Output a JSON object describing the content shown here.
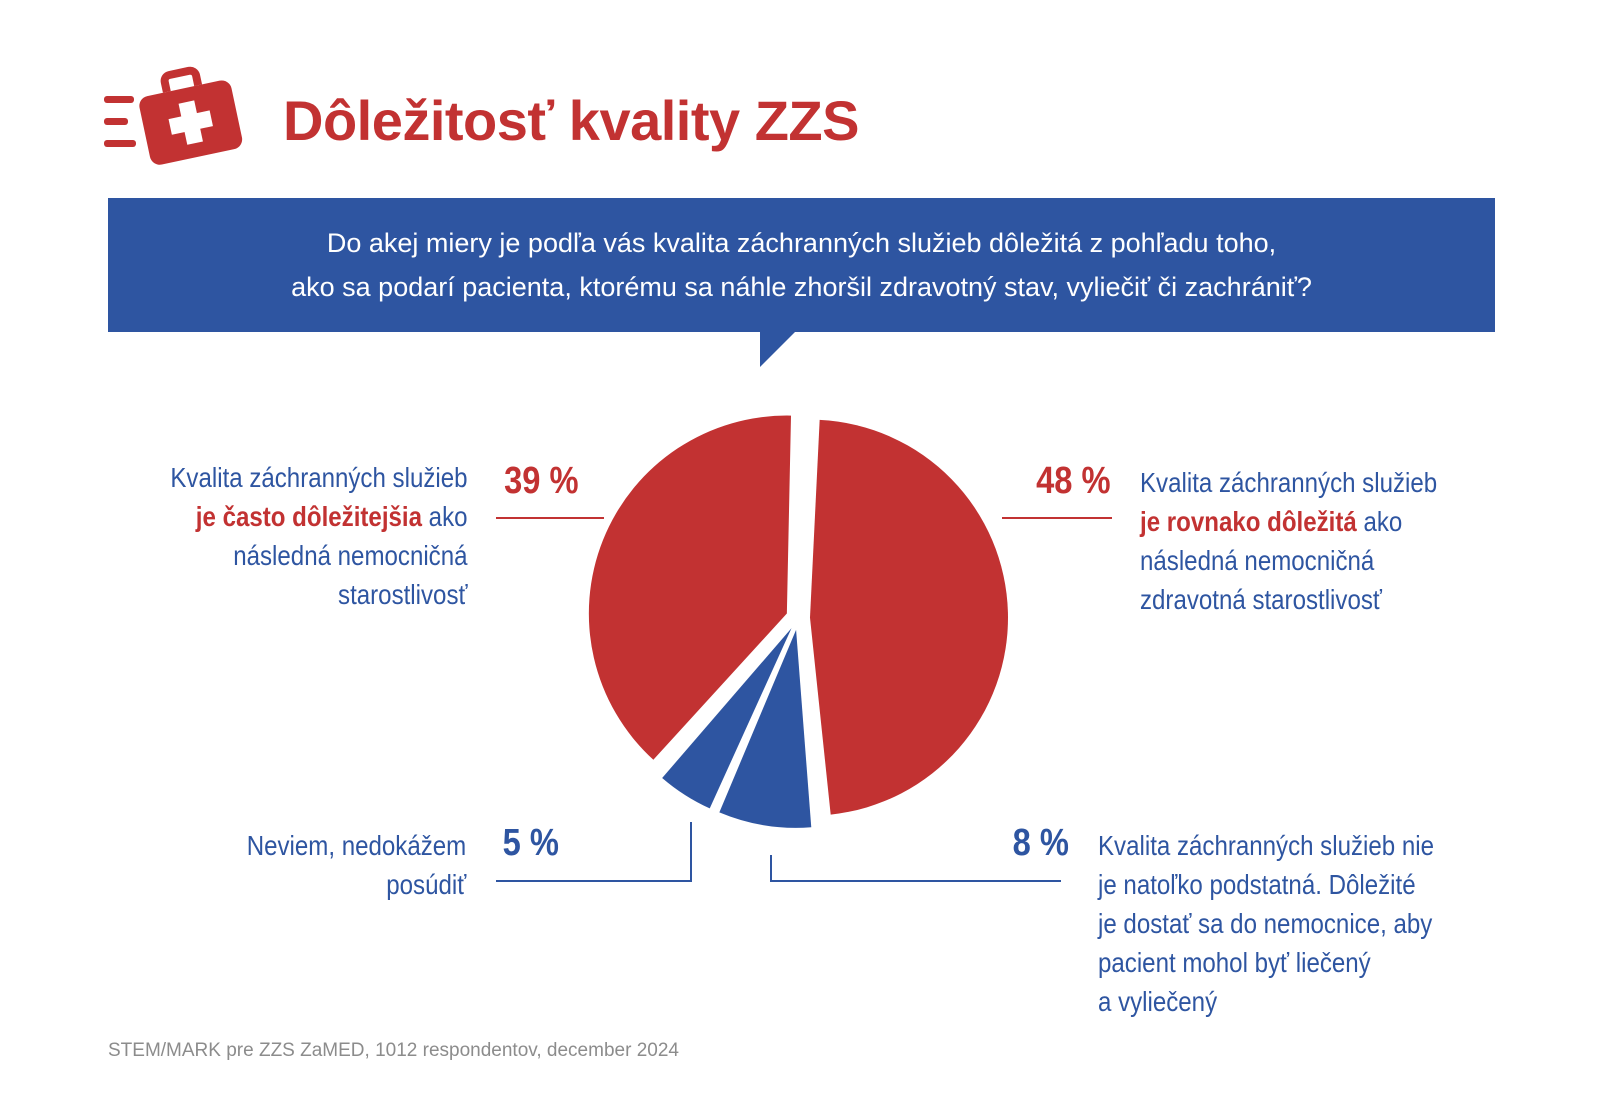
{
  "header": {
    "title": "Dôležitosť kvality ZZS",
    "logo_icon": "first-aid-kit-icon"
  },
  "question": {
    "line1": "Do akej miery je podľa vás kvalita záchranných služieb dôležitá z pohľadu toho,",
    "line2": "ako sa podarí pacienta, ktorému sa náhle zhoršil zdravotný stav, vyliečiť či zachrániť?"
  },
  "colors": {
    "red": "#c23232",
    "blue": "#2e55a1",
    "source_gray": "#8c8c8c"
  },
  "chart_data": {
    "type": "pie",
    "slices": [
      {
        "value": 48,
        "color": "#c23232",
        "pct_text": "48 %",
        "label_lines": [
          {
            "pre": "Kvalita záchranných služieb",
            "hl": "",
            "post": ""
          },
          {
            "pre": "",
            "hl": "je rovnako dôležitá",
            "post": " ako"
          },
          {
            "pre": "následná nemocničná",
            "hl": "",
            "post": ""
          },
          {
            "pre": "zdravotná starostlivosť",
            "hl": "",
            "post": ""
          }
        ]
      },
      {
        "value": 8,
        "color": "#2e55a1",
        "pct_text": "8 %",
        "label_lines": [
          {
            "pre": "Kvalita záchranných služieb nie",
            "hl": "",
            "post": ""
          },
          {
            "pre": "je natoľko podstatná. Dôležité",
            "hl": "",
            "post": ""
          },
          {
            "pre": "je dostať sa do nemocnice, aby",
            "hl": "",
            "post": ""
          },
          {
            "pre": "pacient mohol byť liečený",
            "hl": "",
            "post": ""
          },
          {
            "pre": "a vyliečený",
            "hl": "",
            "post": ""
          }
        ]
      },
      {
        "value": 5,
        "color": "#2e55a1",
        "pct_text": "5 %",
        "label_lines": [
          {
            "pre": "Neviem, nedokážem",
            "hl": "",
            "post": ""
          },
          {
            "pre": "posúdiť",
            "hl": "",
            "post": ""
          }
        ]
      },
      {
        "value": 39,
        "color": "#c23232",
        "pct_text": "39 %",
        "label_lines": [
          {
            "pre": "Kvalita záchranných služieb",
            "hl": "",
            "post": ""
          },
          {
            "pre": "",
            "hl": "je často dôležitejšia",
            "post": " ako"
          },
          {
            "pre": "následná nemocničná",
            "hl": "",
            "post": ""
          },
          {
            "pre": "starostlivosť",
            "hl": "",
            "post": ""
          }
        ]
      }
    ]
  },
  "source": "STEM/MARK pre ZZS ZaMED, 1012 respondentov, december 2024"
}
